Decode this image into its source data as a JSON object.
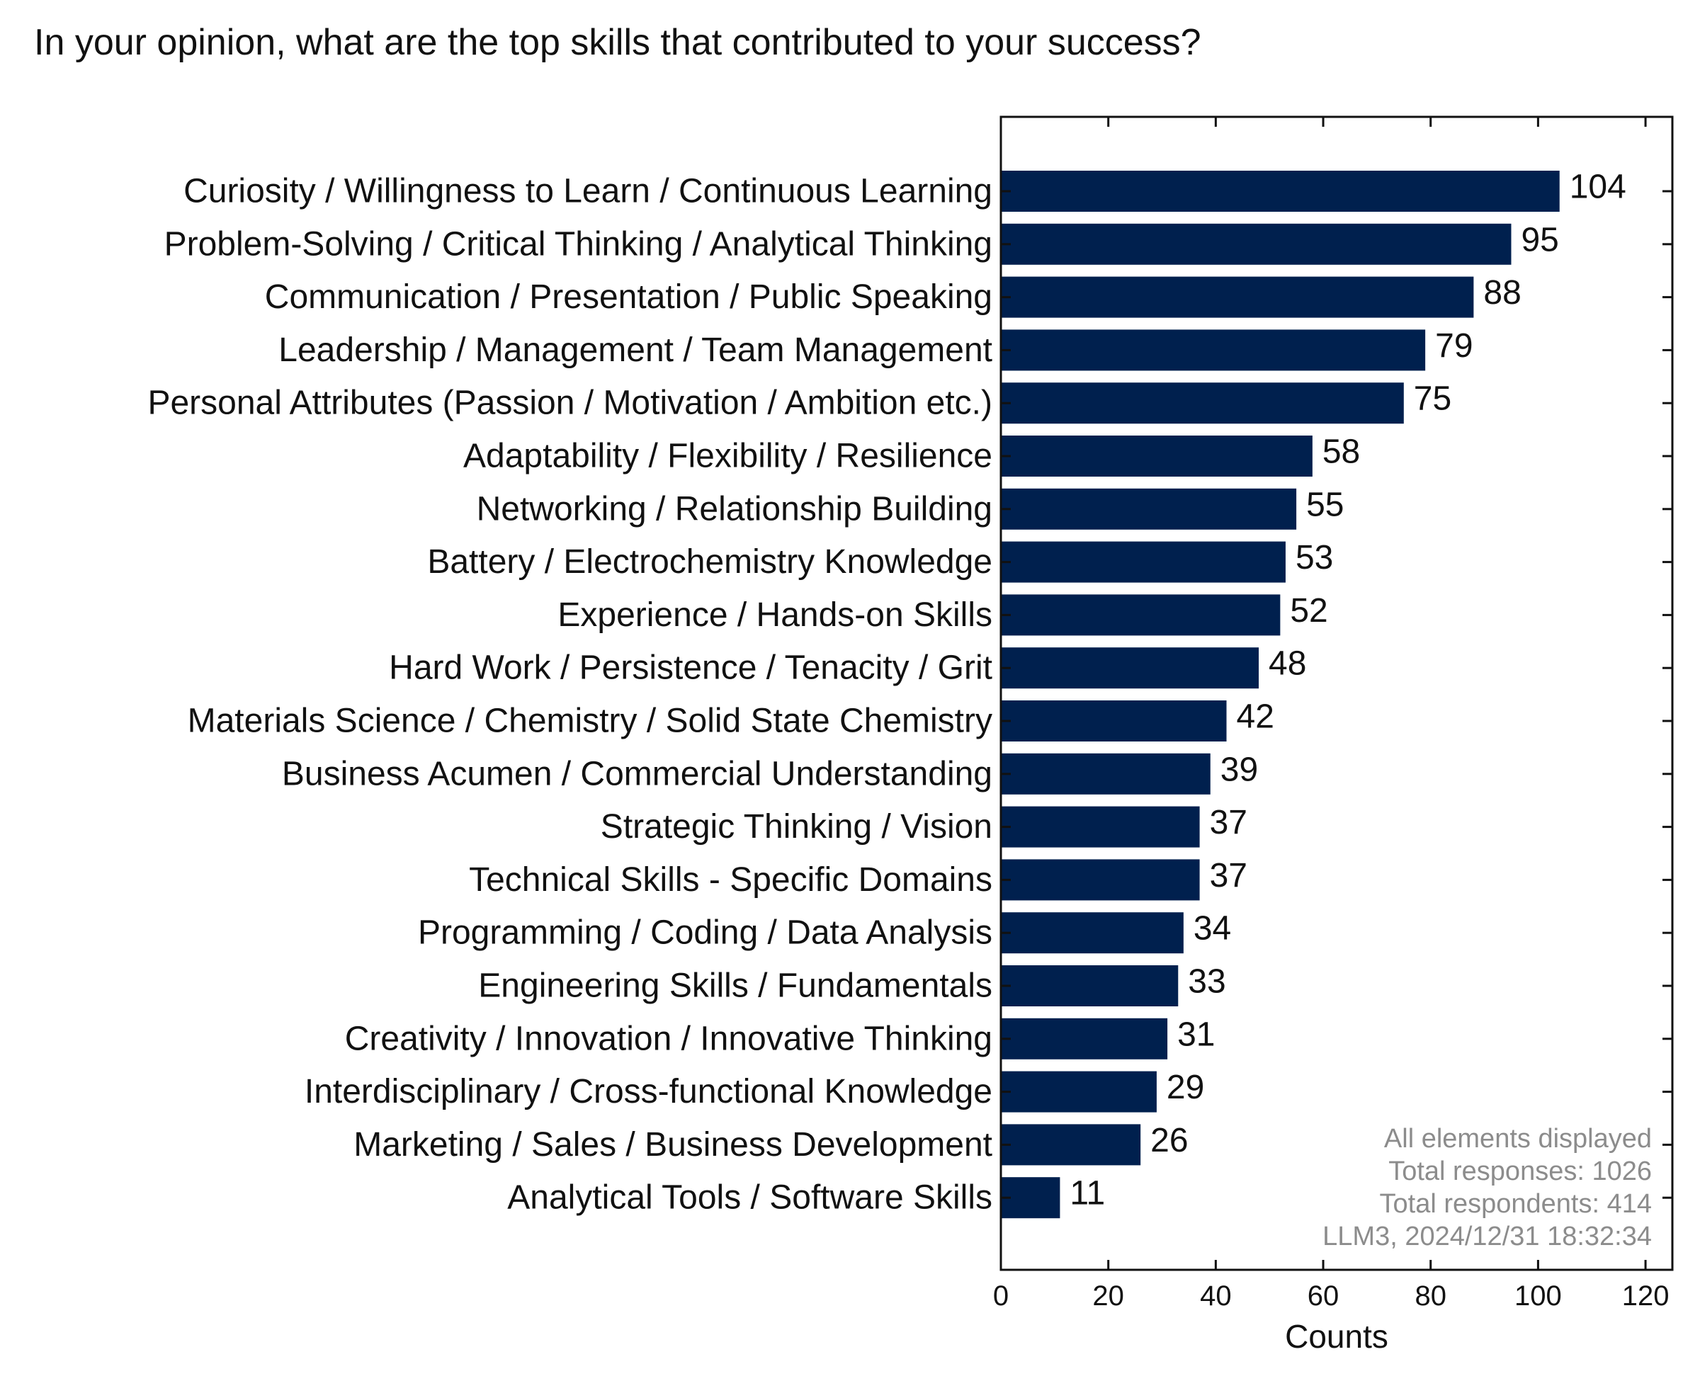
{
  "chart_data": {
    "type": "bar",
    "orientation": "horizontal",
    "title": "In your opinion, what are the top skills that contributed to your success?",
    "xlabel": "Counts",
    "ylabel": "",
    "xlim": [
      0,
      125
    ],
    "xticks": [
      0,
      20,
      40,
      60,
      80,
      100,
      120
    ],
    "grid": false,
    "bar_color": "#00204e",
    "categories": [
      "Curiosity / Willingness to Learn / Continuous Learning",
      "Problem-Solving / Critical Thinking / Analytical Thinking",
      "Communication / Presentation / Public Speaking",
      "Leadership / Management / Team Management",
      "Personal Attributes (Passion / Motivation / Ambition etc.)",
      "Adaptability / Flexibility / Resilience",
      "Networking / Relationship Building",
      "Battery / Electrochemistry Knowledge",
      "Experience / Hands-on Skills",
      "Hard Work / Persistence / Tenacity / Grit",
      "Materials Science / Chemistry / Solid State Chemistry",
      "Business Acumen / Commercial Understanding",
      "Strategic Thinking / Vision",
      "Technical Skills - Specific Domains",
      "Programming / Coding / Data Analysis",
      "Engineering Skills / Fundamentals",
      "Creativity / Innovation / Innovative Thinking",
      "Interdisciplinary / Cross-functional Knowledge",
      "Marketing / Sales / Business Development",
      "Analytical Tools / Software Skills"
    ],
    "values": [
      104,
      95,
      88,
      79,
      75,
      58,
      55,
      53,
      52,
      48,
      42,
      39,
      37,
      37,
      34,
      33,
      31,
      29,
      26,
      11
    ],
    "annotations": [
      "All elements displayed",
      "Total responses: 1026",
      "Total respondents: 414",
      "LLM3, 2024/12/31 18:32:34"
    ]
  }
}
